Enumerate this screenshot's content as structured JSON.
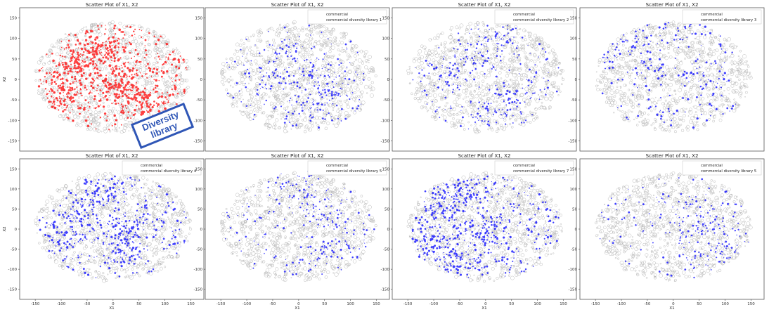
{
  "callout": {
    "line1": "Diversity",
    "line2": "library"
  },
  "colors": {
    "background": "#808080",
    "highlight_red": "#ff0000",
    "highlight_blue": "#0000ff",
    "callout_border": "#2f56b6"
  },
  "chart_data": [
    {
      "type": "scatter",
      "title": "Scatter Plot of X1, X2",
      "xlabel": "",
      "ylabel": "X2",
      "xlim": [
        -180,
        175
      ],
      "ylim": [
        -175,
        175
      ],
      "xticks": [],
      "yticks": [
        -150,
        -100,
        -50,
        0,
        50,
        100,
        150
      ],
      "legend": null,
      "series": [
        {
          "color": "#808080"
        },
        {
          "color": "#ff0000"
        }
      ]
    },
    {
      "type": "scatter",
      "title": "Scatter Plot of X1, X2",
      "xlabel": "",
      "ylabel": "",
      "xlim": [
        -180,
        175
      ],
      "ylim": [
        -175,
        175
      ],
      "xticks": [],
      "yticks": [
        -150,
        -100,
        -50,
        0,
        50,
        100,
        150
      ],
      "legend": {
        "position": "top-right",
        "entries": [
          "commercial",
          "commercial diversity library 1"
        ]
      },
      "series": [
        {
          "name": "commercial",
          "color": "#808080"
        },
        {
          "name": "commercial diversity library 1",
          "color": "#0000ff"
        }
      ]
    },
    {
      "type": "scatter",
      "title": "Scatter Plot of X1, X2",
      "xlabel": "",
      "ylabel": "",
      "xlim": [
        -180,
        175
      ],
      "ylim": [
        -175,
        175
      ],
      "xticks": [],
      "yticks": [
        -150,
        -100,
        -50,
        0,
        50,
        100,
        150
      ],
      "legend": {
        "position": "top-right",
        "entries": [
          "commercial",
          "commercial diversity library 2"
        ]
      },
      "series": [
        {
          "name": "commercial",
          "color": "#808080"
        },
        {
          "name": "commercial diversity library 2",
          "color": "#0000ff"
        }
      ]
    },
    {
      "type": "scatter",
      "title": "Scatter Plot of X1, X2",
      "xlabel": "",
      "ylabel": "",
      "xlim": [
        -180,
        175
      ],
      "ylim": [
        -175,
        175
      ],
      "xticks": [],
      "yticks": [
        -150,
        -100,
        -50,
        0,
        50,
        100,
        150
      ],
      "legend": {
        "position": "top-right",
        "entries": [
          "commercial",
          "commercial diversity library 3"
        ]
      },
      "series": [
        {
          "name": "commercial",
          "color": "#808080"
        },
        {
          "name": "commercial diversity library 3",
          "color": "#0000ff"
        }
      ]
    },
    {
      "type": "scatter",
      "title": "Scatter Plot of X1, X2",
      "xlabel": "X1",
      "ylabel": "X2",
      "xlim": [
        -180,
        175
      ],
      "ylim": [
        -175,
        175
      ],
      "xticks": [
        -150,
        -100,
        -50,
        0,
        50,
        100,
        150
      ],
      "yticks": [
        -150,
        -100,
        -50,
        0,
        50,
        100,
        150
      ],
      "legend": {
        "position": "top-right",
        "entries": [
          "commercial",
          "commercial diversity library 4"
        ]
      },
      "series": [
        {
          "name": "commercial",
          "color": "#808080"
        },
        {
          "name": "commercial diversity library 4",
          "color": "#0000ff"
        }
      ]
    },
    {
      "type": "scatter",
      "title": "Scatter Plot of X1, X2",
      "xlabel": "X1",
      "ylabel": "",
      "xlim": [
        -180,
        175
      ],
      "ylim": [
        -175,
        175
      ],
      "xticks": [
        -150,
        -100,
        -50,
        0,
        50,
        100,
        150
      ],
      "yticks": [
        -150,
        -100,
        -50,
        0,
        50,
        100,
        150
      ],
      "legend": {
        "position": "top-right",
        "entries": [
          "commercial",
          "commercial diversity library 5"
        ]
      },
      "series": [
        {
          "name": "commercial",
          "color": "#808080"
        },
        {
          "name": "commercial diversity library 5",
          "color": "#0000ff"
        }
      ]
    },
    {
      "type": "scatter",
      "title": "Scatter Plot of X1, X2",
      "xlabel": "X1",
      "ylabel": "",
      "xlim": [
        -180,
        175
      ],
      "ylim": [
        -175,
        175
      ],
      "xticks": [
        -150,
        -100,
        -50,
        0,
        50,
        100,
        150
      ],
      "yticks": [
        -150,
        -100,
        -50,
        0,
        50,
        100,
        150
      ],
      "legend": {
        "position": "top-right",
        "entries": [
          "commercial",
          "commercial diversity library 7"
        ]
      },
      "series": [
        {
          "name": "commercial",
          "color": "#808080"
        },
        {
          "name": "commercial diversity library 7",
          "color": "#0000ff"
        }
      ]
    },
    {
      "type": "scatter",
      "title": "Scatter Plot of X1, X2",
      "xlabel": "X1",
      "ylabel": "",
      "xlim": [
        -180,
        175
      ],
      "ylim": [
        -175,
        175
      ],
      "xticks": [
        -150,
        -100,
        -50,
        0,
        50,
        100,
        150
      ],
      "yticks": [
        -150,
        -100,
        -50,
        0,
        50,
        100,
        150
      ],
      "legend": {
        "position": "top-right",
        "entries": [
          "commercial",
          "commercial diversity library 5"
        ]
      },
      "series": [
        {
          "name": "commercial",
          "color": "#808080"
        },
        {
          "name": "commercial diversity library 5",
          "color": "#0000ff"
        }
      ]
    }
  ]
}
